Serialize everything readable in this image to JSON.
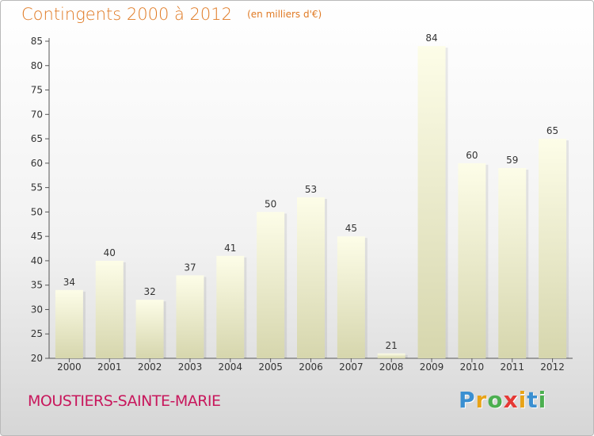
{
  "title": "Contingents 2000 à 2012",
  "unit_label": "(en milliers d'€)",
  "commune": "MOUSTIERS-SAINTE-MARIE",
  "brand": {
    "text": "Proxiti",
    "letters": [
      {
        "char": "P",
        "color": "#3a8fd1"
      },
      {
        "char": "r",
        "color": "#e8a317"
      },
      {
        "char": "o",
        "color": "#4caf50"
      },
      {
        "char": "x",
        "color": "#e53935"
      },
      {
        "char": "i",
        "color": "#e8a317"
      },
      {
        "char": "t",
        "color": "#3a8fd1"
      },
      {
        "char": "i",
        "color": "#4caf50"
      }
    ]
  },
  "colors": {
    "title": "#e07a24",
    "commune": "#c8175c",
    "bar_top": "#fdfde8",
    "bar_bottom": "#d6d6ad"
  },
  "chart_data": {
    "type": "bar",
    "categories": [
      "2000",
      "2001",
      "2002",
      "2003",
      "2004",
      "2005",
      "2006",
      "2007",
      "2008",
      "2009",
      "2010",
      "2011",
      "2012"
    ],
    "values": [
      34,
      40,
      32,
      37,
      41,
      50,
      53,
      45,
      21,
      84,
      60,
      59,
      65
    ],
    "ylim": [
      20,
      85
    ],
    "yticks": [
      20,
      25,
      30,
      35,
      40,
      45,
      50,
      55,
      60,
      65,
      70,
      75,
      80,
      85
    ],
    "title": "Contingents 2000 à 2012",
    "ylabel": "(en milliers d'€)",
    "xlabel": "",
    "grid": false,
    "legend": "none"
  }
}
